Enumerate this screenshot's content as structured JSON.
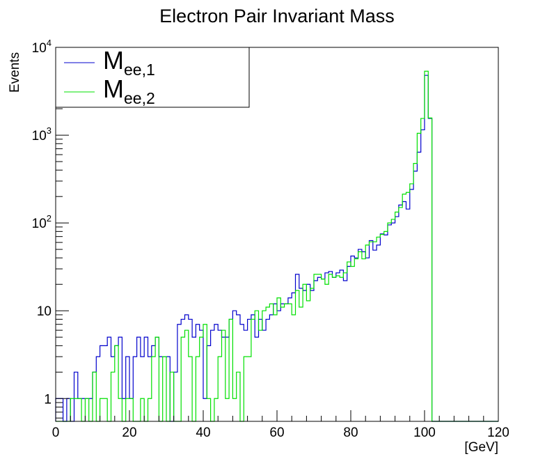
{
  "chart_data": {
    "type": "histogram",
    "title": "Electron Pair Invariant Mass",
    "xlabel": "[GeV]",
    "ylabel": "Events",
    "xlim": [
      0,
      120
    ],
    "ylim": [
      0.55,
      10000
    ],
    "yscale": "log",
    "bin_width": 1,
    "grid": false,
    "legend_position": "top-left",
    "x_ticks": [
      {
        "value": 0,
        "label": "0"
      },
      {
        "value": 20,
        "label": "20"
      },
      {
        "value": 40,
        "label": "40"
      },
      {
        "value": 60,
        "label": "60"
      },
      {
        "value": 80,
        "label": "80"
      },
      {
        "value": 100,
        "label": "100"
      },
      {
        "value": 120,
        "label": "120"
      }
    ],
    "y_ticks": [
      {
        "value": 1,
        "label": "1",
        "exp": ""
      },
      {
        "value": 10,
        "label": "10",
        "exp": ""
      },
      {
        "value": 100,
        "label": "10",
        "exp": "2"
      },
      {
        "value": 1000,
        "label": "10",
        "exp": "3"
      },
      {
        "value": 10000,
        "label": "10",
        "exp": "4"
      }
    ],
    "series": [
      {
        "name": "M",
        "subscript": "ee,1",
        "color": "#0000cc",
        "values": [
          1,
          1,
          0,
          1,
          0,
          2,
          1,
          1,
          1,
          1,
          2,
          3,
          4,
          4,
          5,
          3,
          4,
          5,
          1,
          3,
          1,
          3,
          5,
          3,
          5,
          3,
          4,
          5,
          3,
          3,
          3,
          0,
          2,
          7,
          8,
          9,
          8,
          5,
          7,
          6,
          1,
          4,
          6,
          7,
          6,
          5,
          5,
          8,
          10,
          9,
          7,
          6,
          8,
          9,
          5,
          8,
          6,
          8,
          9,
          12,
          10,
          12,
          12,
          14,
          16,
          26,
          18,
          17,
          20,
          17,
          22,
          24,
          23,
          27,
          28,
          24,
          27,
          29,
          22,
          32,
          42,
          40,
          50,
          47,
          40,
          63,
          49,
          56,
          75,
          73,
          95,
          100,
          118,
          160,
          175,
          144,
          241,
          389,
          640,
          1150,
          4800,
          1550,
          0,
          0,
          0,
          0,
          0,
          0,
          0,
          0,
          0,
          0,
          0,
          0,
          0,
          0,
          0,
          0,
          0,
          0
        ]
      },
      {
        "name": "M",
        "subscript": "ee,2",
        "color": "#00e000",
        "values": [
          0,
          0,
          0,
          0,
          1,
          1,
          1,
          0,
          1,
          0,
          2,
          0,
          1,
          1,
          0,
          2,
          4,
          1,
          0,
          1,
          1,
          0,
          0,
          1,
          0,
          1,
          3,
          5,
          0,
          3,
          0,
          2,
          0,
          0,
          5,
          6,
          3,
          0,
          3,
          5,
          7,
          1,
          0,
          1,
          3,
          6,
          1,
          8,
          1,
          2,
          0,
          3,
          3,
          8,
          10,
          6,
          10,
          11,
          12,
          9,
          14,
          11,
          12,
          12,
          9,
          17,
          11,
          20,
          13,
          18,
          26,
          26,
          23,
          20,
          26,
          24,
          25,
          24,
          27,
          36,
          32,
          39,
          47,
          39,
          56,
          61,
          61,
          69,
          74,
          80,
          100,
          110,
          133,
          150,
          213,
          223,
          279,
          477,
          1050,
          1550,
          5350,
          1570,
          0,
          0,
          0,
          0,
          0,
          0,
          0,
          0,
          0,
          0,
          0,
          0,
          0,
          0,
          0,
          0,
          0,
          0
        ]
      }
    ]
  }
}
